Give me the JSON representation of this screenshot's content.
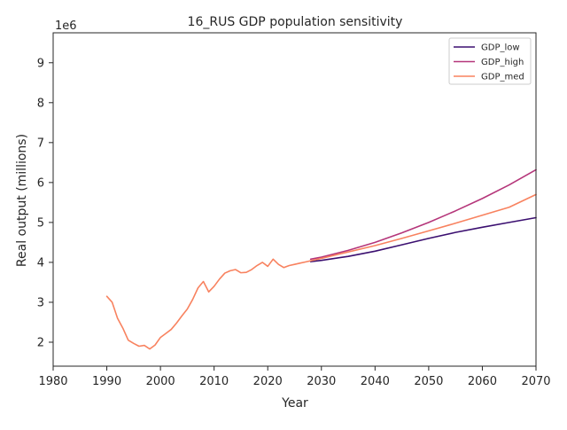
{
  "chart_data": {
    "type": "line",
    "title": "16_RUS GDP population sensitivity",
    "xlabel": "Year",
    "ylabel": "Real output (millions)",
    "y_offset_label": "1e6",
    "xlim": [
      1980,
      2070
    ],
    "ylim": [
      1.4,
      9.75
    ],
    "x_ticks": [
      1980,
      1990,
      2000,
      2010,
      2020,
      2030,
      2040,
      2050,
      2060,
      2070
    ],
    "y_ticks": [
      2,
      3,
      4,
      5,
      6,
      7,
      8,
      9
    ],
    "grid": false,
    "legend_position": "top-right",
    "series": [
      {
        "name": "GDP_low",
        "color": "#3b0f70",
        "x": [
          2028,
          2030,
          2035,
          2040,
          2045,
          2050,
          2055,
          2060,
          2065,
          2070
        ],
        "y": [
          4.02,
          4.05,
          4.15,
          4.28,
          4.44,
          4.6,
          4.75,
          4.88,
          5.0,
          5.12
        ]
      },
      {
        "name": "GDP_high",
        "color": "#b5367a",
        "x": [
          2028,
          2030,
          2035,
          2040,
          2045,
          2050,
          2055,
          2060,
          2065,
          2070
        ],
        "y": [
          4.08,
          4.13,
          4.3,
          4.5,
          4.74,
          5.0,
          5.29,
          5.6,
          5.94,
          6.32
        ]
      },
      {
        "name": "GDP_med",
        "color": "#f8825f",
        "x": [
          1990,
          1991,
          1992,
          1993,
          1994,
          1995,
          1996,
          1997,
          1998,
          1999,
          2000,
          2001,
          2002,
          2003,
          2004,
          2005,
          2006,
          2007,
          2008,
          2009,
          2010,
          2011,
          2012,
          2013,
          2014,
          2015,
          2016,
          2017,
          2018,
          2019,
          2020,
          2021,
          2022,
          2023,
          2024,
          2025,
          2026,
          2027,
          2028,
          2030,
          2035,
          2040,
          2045,
          2050,
          2055,
          2060,
          2065,
          2070
        ],
        "y": [
          3.15,
          3.0,
          2.6,
          2.35,
          2.05,
          1.97,
          1.9,
          1.92,
          1.83,
          1.93,
          2.12,
          2.22,
          2.32,
          2.48,
          2.66,
          2.83,
          3.07,
          3.36,
          3.52,
          3.26,
          3.4,
          3.58,
          3.73,
          3.79,
          3.82,
          3.74,
          3.75,
          3.82,
          3.92,
          4.0,
          3.9,
          4.08,
          3.95,
          3.87,
          3.92,
          3.95,
          3.98,
          4.01,
          4.04,
          4.1,
          4.26,
          4.42,
          4.6,
          4.79,
          4.98,
          5.18,
          5.38,
          5.7
        ]
      }
    ]
  }
}
